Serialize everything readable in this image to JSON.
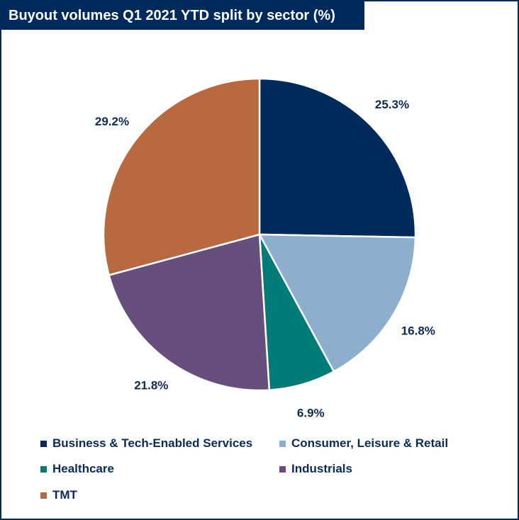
{
  "chart_data": {
    "type": "pie",
    "title": "Buyout volumes Q1 2021 YTD split by sector (%)",
    "slices": [
      {
        "name": "Business & Tech-Enabled Services",
        "value": 25.3,
        "label": "25.3%",
        "color": "#002a5c"
      },
      {
        "name": "Consumer, Leisure & Retail",
        "value": 16.8,
        "label": "16.8%",
        "color": "#8eaecd"
      },
      {
        "name": "Healthcare",
        "value": 6.9,
        "label": "6.9%",
        "color": "#007b78"
      },
      {
        "name": "Industrials",
        "value": 21.8,
        "label": "21.8%",
        "color": "#664f7d"
      },
      {
        "name": "TMT",
        "value": 29.2,
        "label": "29.2%",
        "color": "#b8693f"
      }
    ],
    "legend_position": "bottom",
    "label_position": "outside"
  }
}
